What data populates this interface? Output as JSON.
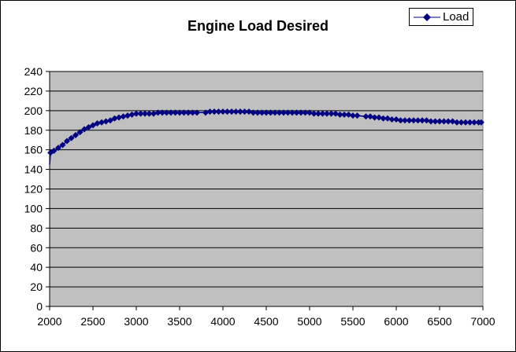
{
  "chart_data": {
    "type": "line",
    "title": "Engine Load Desired",
    "xlabel": "",
    "ylabel": "",
    "xlim": [
      2000,
      7000
    ],
    "ylim": [
      0,
      240
    ],
    "x_ticks": [
      2000,
      2500,
      3000,
      3500,
      4000,
      4500,
      5000,
      5500,
      6000,
      6500,
      7000
    ],
    "y_ticks": [
      0,
      20,
      40,
      60,
      80,
      100,
      120,
      140,
      160,
      180,
      200,
      220,
      240
    ],
    "grid": true,
    "legend": "top-right",
    "marker": "diamond",
    "series": [
      {
        "name": "Load",
        "color": "#000080",
        "points": [
          [
            2000,
            145
          ],
          [
            2010,
            157
          ],
          [
            2050,
            159
          ],
          [
            2100,
            162
          ],
          [
            2150,
            165
          ],
          [
            2200,
            169
          ],
          [
            2250,
            172
          ],
          [
            2300,
            175
          ],
          [
            2350,
            178
          ],
          [
            2400,
            181
          ],
          [
            2450,
            183
          ],
          [
            2500,
            185
          ],
          [
            2550,
            187
          ],
          [
            2600,
            188
          ],
          [
            2650,
            189
          ],
          [
            2700,
            190
          ],
          [
            2750,
            192
          ],
          [
            2800,
            193
          ],
          [
            2850,
            194
          ],
          [
            2900,
            195
          ],
          [
            2950,
            196
          ],
          [
            3000,
            197
          ],
          [
            3050,
            197
          ],
          [
            3100,
            197
          ],
          [
            3150,
            197
          ],
          [
            3200,
            197
          ],
          [
            3250,
            198
          ],
          [
            3300,
            198
          ],
          [
            3350,
            198
          ],
          [
            3400,
            198
          ],
          [
            3450,
            198
          ],
          [
            3500,
            198
          ],
          [
            3550,
            198
          ],
          [
            3600,
            198
          ],
          [
            3650,
            198
          ],
          [
            3700,
            198
          ],
          [
            3800,
            198
          ],
          [
            3850,
            199
          ],
          [
            3900,
            199
          ],
          [
            3950,
            199
          ],
          [
            4000,
            199
          ],
          [
            4050,
            199
          ],
          [
            4100,
            199
          ],
          [
            4150,
            199
          ],
          [
            4200,
            199
          ],
          [
            4250,
            199
          ],
          [
            4300,
            199
          ],
          [
            4350,
            198
          ],
          [
            4400,
            198
          ],
          [
            4450,
            198
          ],
          [
            4500,
            198
          ],
          [
            4550,
            198
          ],
          [
            4600,
            198
          ],
          [
            4650,
            198
          ],
          [
            4700,
            198
          ],
          [
            4750,
            198
          ],
          [
            4800,
            198
          ],
          [
            4850,
            198
          ],
          [
            4900,
            198
          ],
          [
            4950,
            198
          ],
          [
            5000,
            198
          ],
          [
            5050,
            197
          ],
          [
            5100,
            197
          ],
          [
            5150,
            197
          ],
          [
            5200,
            197
          ],
          [
            5250,
            197
          ],
          [
            5300,
            197
          ],
          [
            5350,
            196
          ],
          [
            5400,
            196
          ],
          [
            5450,
            196
          ],
          [
            5500,
            195
          ],
          [
            5550,
            195
          ],
          [
            5650,
            194
          ],
          [
            5700,
            194
          ],
          [
            5750,
            193
          ],
          [
            5800,
            193
          ],
          [
            5850,
            192
          ],
          [
            5900,
            192
          ],
          [
            5950,
            191
          ],
          [
            6000,
            191
          ],
          [
            6050,
            190
          ],
          [
            6100,
            190
          ],
          [
            6150,
            190
          ],
          [
            6200,
            190
          ],
          [
            6250,
            190
          ],
          [
            6300,
            190
          ],
          [
            6350,
            190
          ],
          [
            6400,
            189
          ],
          [
            6450,
            189
          ],
          [
            6500,
            189
          ],
          [
            6550,
            189
          ],
          [
            6600,
            189
          ],
          [
            6650,
            189
          ],
          [
            6700,
            188
          ],
          [
            6750,
            188
          ],
          [
            6800,
            188
          ],
          [
            6850,
            188
          ],
          [
            6900,
            188
          ],
          [
            6950,
            188
          ],
          [
            6980,
            188
          ]
        ]
      }
    ]
  }
}
